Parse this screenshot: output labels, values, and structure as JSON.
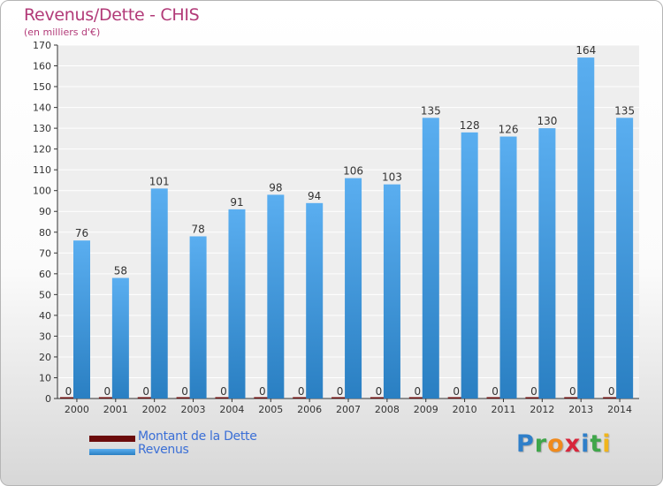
{
  "colors": {
    "title": "#b23a78",
    "revenus_light": "#5aaef0",
    "revenus_dark": "#2a7fc2",
    "dette": "#6b0b0b",
    "axis": "#333333",
    "grid": "#ffffff",
    "legend_text": "#3b6fd6"
  },
  "logo": {
    "letters": [
      "P",
      "r",
      "o",
      "x",
      "i",
      "t",
      "i"
    ],
    "colors": [
      "#2f7fc9",
      "#3fa64a",
      "#f08a1c",
      "#d8263b",
      "#2f7fc9",
      "#3fa64a",
      "#f0b51c"
    ]
  },
  "chart_data": {
    "type": "bar",
    "title": "Revenus/Dette - CHIS",
    "subtitle": "(en milliers d'€)",
    "xlabel": "",
    "ylabel": "",
    "ylim": [
      0,
      170
    ],
    "yticks": [
      0,
      10,
      20,
      30,
      40,
      50,
      60,
      70,
      80,
      90,
      100,
      110,
      120,
      130,
      140,
      150,
      160,
      170
    ],
    "categories": [
      "2000",
      "2001",
      "2002",
      "2003",
      "2004",
      "2005",
      "2006",
      "2007",
      "2008",
      "2009",
      "2010",
      "2011",
      "2012",
      "2013",
      "2014"
    ],
    "series": [
      {
        "name": "Montant de la Dette",
        "values": [
          0,
          0,
          0,
          0,
          0,
          0,
          0,
          0,
          0,
          0,
          0,
          0,
          0,
          0,
          0
        ]
      },
      {
        "name": "Revenus",
        "values": [
          76,
          58,
          101,
          78,
          91,
          98,
          94,
          106,
          103,
          135,
          128,
          126,
          130,
          164,
          135
        ]
      }
    ],
    "grid": true,
    "legend": "bottom-left"
  }
}
